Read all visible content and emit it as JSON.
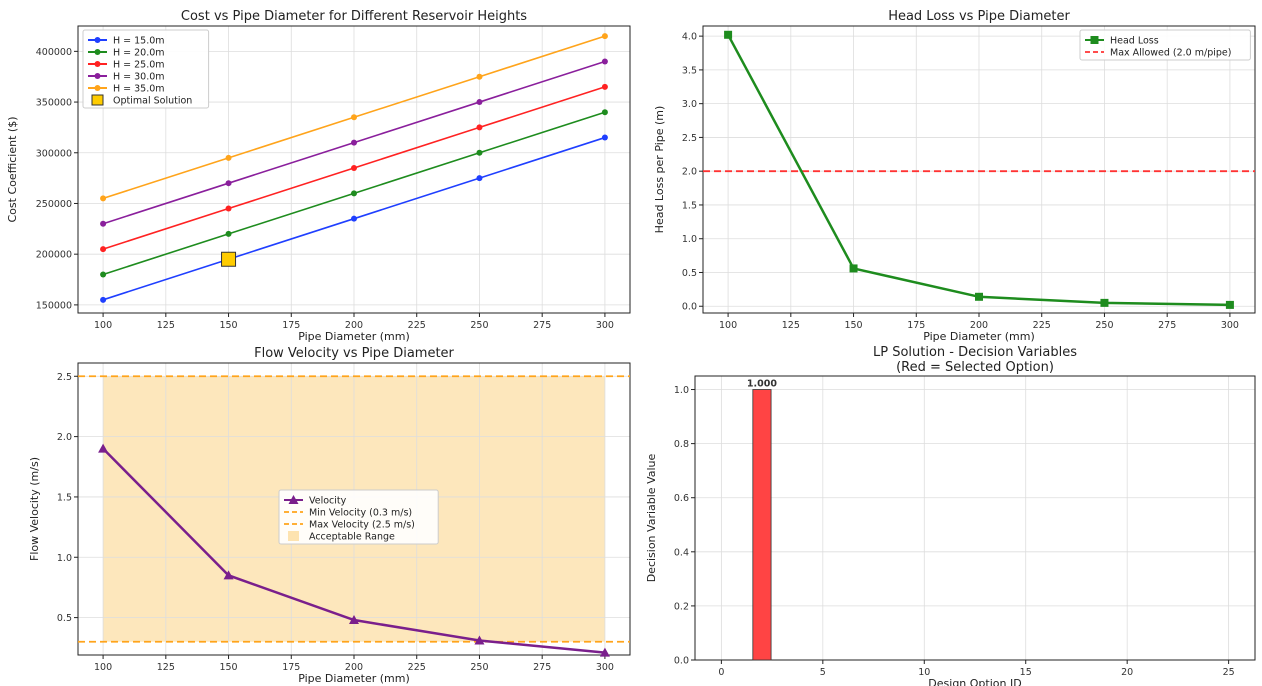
{
  "charts": [
    {
      "type": "line",
      "title": "Cost vs Pipe Diameter for Different Reservoir Heights",
      "xlabel": "Pipe Diameter (mm)",
      "ylabel": "Cost Coefficient ($)",
      "xlim": [
        90,
        310
      ],
      "ylim": [
        142000,
        425000
      ],
      "xticks": [
        100,
        125,
        150,
        175,
        200,
        225,
        250,
        275,
        300
      ],
      "yticks": [
        150000,
        200000,
        250000,
        300000,
        350000,
        400000
      ],
      "x": [
        100,
        150,
        200,
        250,
        300
      ],
      "series": [
        {
          "name": "H = 15.0m",
          "color": "#1f3fff",
          "values": [
            155000,
            195000,
            235000,
            275000,
            315000
          ]
        },
        {
          "name": "H = 20.0m",
          "color": "#1e8c1e",
          "values": [
            180000,
            220000,
            260000,
            300000,
            340000
          ]
        },
        {
          "name": "H = 25.0m",
          "color": "#ff2222",
          "values": [
            205000,
            245000,
            285000,
            325000,
            365000
          ]
        },
        {
          "name": "H = 30.0m",
          "color": "#8a1f9c",
          "values": [
            230000,
            270000,
            310000,
            350000,
            390000
          ]
        },
        {
          "name": "H = 35.0m",
          "color": "#ffa41b",
          "values": [
            255000,
            295000,
            335000,
            375000,
            415000
          ]
        }
      ],
      "optimal": {
        "name": "Optimal Solution",
        "x": 150,
        "y": 195000,
        "color": "#ffcc00"
      },
      "grid": true,
      "legend": "top-left"
    },
    {
      "type": "line",
      "title": "Head Loss vs Pipe Diameter",
      "xlabel": "Pipe Diameter (mm)",
      "ylabel": "Head Loss per Pipe (m)",
      "xlim": [
        90,
        310
      ],
      "ylim": [
        -0.1,
        4.15
      ],
      "xticks": [
        100,
        125,
        150,
        175,
        200,
        225,
        250,
        275,
        300
      ],
      "yticks": [
        0.0,
        0.5,
        1.0,
        1.5,
        2.0,
        2.5,
        3.0,
        3.5,
        4.0
      ],
      "x": [
        100,
        150,
        200,
        250,
        300
      ],
      "series": [
        {
          "name": "Head Loss",
          "color": "#1e8c1e",
          "values": [
            4.02,
            0.56,
            0.14,
            0.05,
            0.02
          ]
        }
      ],
      "hlines": [
        {
          "name": "Max Allowed (2.0 m/pipe)",
          "y": 2.0,
          "color": "#ff3333"
        }
      ],
      "grid": true,
      "legend": "top-right"
    },
    {
      "type": "line",
      "title": "Flow Velocity vs Pipe Diameter",
      "xlabel": "Pipe Diameter (mm)",
      "ylabel": "Flow Velocity (m/s)",
      "xlim": [
        90,
        310
      ],
      "ylim": [
        0.19,
        2.61
      ],
      "xticks": [
        100,
        125,
        150,
        175,
        200,
        225,
        250,
        275,
        300
      ],
      "yticks": [
        0.5,
        1.0,
        1.5,
        2.0,
        2.5
      ],
      "x": [
        100,
        150,
        200,
        250,
        300
      ],
      "series": [
        {
          "name": "Velocity",
          "color": "#7a1f8c",
          "values": [
            1.9,
            0.85,
            0.48,
            0.31,
            0.21
          ]
        }
      ],
      "hlines": [
        {
          "name": "Min Velocity (0.3 m/s)",
          "y": 0.3,
          "color": "#ffa41b"
        },
        {
          "name": "Max Velocity (2.5 m/s)",
          "y": 2.5,
          "color": "#ffa41b"
        }
      ],
      "band": {
        "name": "Acceptable Range",
        "x0": 100,
        "x1": 300,
        "y0": 0.3,
        "y1": 2.5,
        "color": "#fde3b0"
      },
      "grid": true,
      "legend": "center"
    },
    {
      "type": "bar",
      "title": "LP Solution - Decision Variables",
      "subtitle": "(Red = Selected Option)",
      "xlabel": "Design Option ID",
      "ylabel": "Decision Variable Value",
      "xlim": [
        -1.3,
        26.3
      ],
      "ylim": [
        0,
        1.05
      ],
      "xticks": [
        0,
        5,
        10,
        15,
        20,
        25
      ],
      "yticks": [
        0.0,
        0.2,
        0.4,
        0.6,
        0.8,
        1.0
      ],
      "bars": [
        {
          "x": 2,
          "value": 1.0,
          "label": "1.000",
          "color": "#ff4444"
        }
      ],
      "grid": true
    }
  ]
}
